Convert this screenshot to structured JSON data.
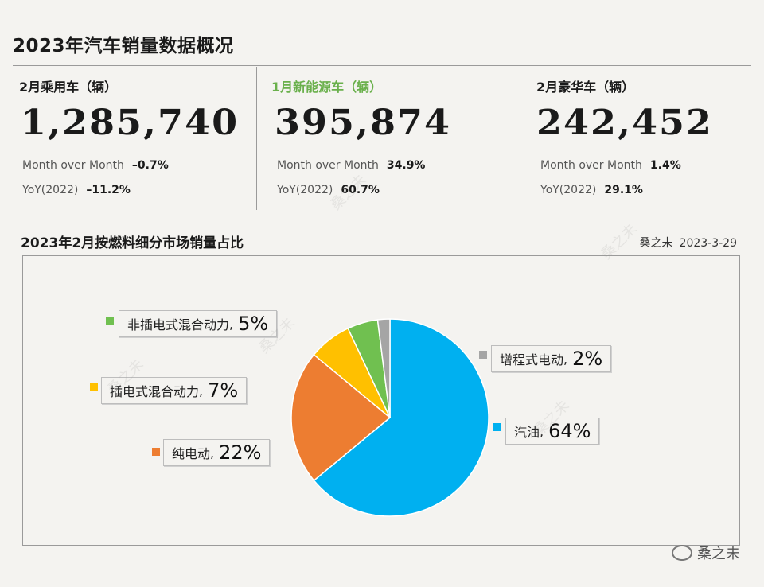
{
  "header": {
    "title": "2023年汽车销量数据概况"
  },
  "cards": [
    {
      "label": "2月乘用车（辆）",
      "value": "1,285,740",
      "mom_label": "Month over Month",
      "mom_value": "–0.7%",
      "yoy_label": "YoY(2022)",
      "yoy_value": "–11.2%"
    },
    {
      "label": "1月新能源车（辆）",
      "value": "395,874",
      "mom_label": "Month over Month",
      "mom_value": "34.9%",
      "yoy_label": "YoY(2022)",
      "yoy_value": "60.7%"
    },
    {
      "label": "2月豪华车（辆）",
      "value": "242,452",
      "mom_label": "Month over Month",
      "mom_value": "1.4%",
      "yoy_label": "YoY(2022)",
      "yoy_value": "29.1%"
    }
  ],
  "section": {
    "title": "2023年2月按燃料细分市场销量占比",
    "author": "桑之未",
    "date": "2023-3-29"
  },
  "watermark": "桑之未",
  "footer": {
    "brand": "桑之未"
  },
  "colors": {
    "accent_green": "#6ab04c",
    "gasoline": "#00b0f0",
    "pure_electric": "#ed7d31",
    "phev": "#ffc000",
    "non_plugin_hybrid": "#70c050",
    "erev": "#a5a5a5"
  },
  "chart_data": {
    "type": "pie",
    "title": "2023年2月按燃料细分市场销量占比",
    "slices": [
      {
        "name": "汽油",
        "value": 64,
        "label": "64%",
        "color": "#00b0f0"
      },
      {
        "name": "纯电动",
        "value": 22,
        "label": "22%",
        "color": "#ed7d31"
      },
      {
        "name": "插电式混合动力",
        "value": 7,
        "label": "7%",
        "color": "#ffc000"
      },
      {
        "name": "非插电式混合动力",
        "value": 5,
        "label": "5%",
        "color": "#70c050"
      },
      {
        "name": "增程式电动",
        "value": 2,
        "label": "2%",
        "color": "#a5a5a5"
      }
    ],
    "start": "12 o'clock",
    "direction": "clockwise"
  }
}
